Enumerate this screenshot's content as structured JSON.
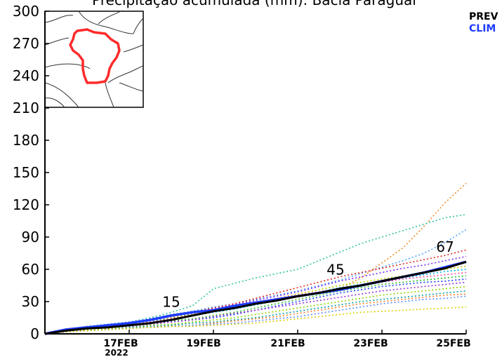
{
  "chart_data": {
    "type": "line",
    "title": "Precipitação acumulada (mm): Bacia Paraguai",
    "xlabel": "",
    "ylabel": "",
    "ylim": [
      0,
      300
    ],
    "yticks": [
      0,
      30,
      60,
      90,
      120,
      150,
      180,
      210,
      240,
      270,
      300
    ],
    "xlim": [
      0,
      10
    ],
    "x_ticks": [
      {
        "x": 2,
        "label": "17FEB",
        "sub": "2022"
      },
      {
        "x": 4,
        "label": "19FEB",
        "sub": ""
      },
      {
        "x": 6,
        "label": "21FEB",
        "sub": ""
      },
      {
        "x": 8,
        "label": "23FEB",
        "sub": ""
      },
      {
        "x": 10,
        "label": "25FEB",
        "sub": ""
      }
    ],
    "legend": {
      "placement": "top-right",
      "items": [
        {
          "label": "PREV",
          "color": "#000000"
        },
        {
          "label": "CLIM",
          "color": "#1f3cff"
        }
      ]
    },
    "annotations": [
      {
        "text": "15",
        "x": 3.0,
        "y": 20
      },
      {
        "text": "45",
        "x": 6.9,
        "y": 50
      },
      {
        "text": "67",
        "x": 9.5,
        "y": 71
      }
    ],
    "x": [
      0,
      0.5,
      1,
      1.5,
      2,
      2.5,
      3,
      3.5,
      4,
      4.5,
      5,
      5.5,
      6,
      6.5,
      7,
      7.5,
      8,
      8.5,
      9,
      9.5,
      10
    ],
    "series": [
      {
        "name": "PREV",
        "color": "#000000",
        "style": "solid",
        "values": [
          0,
          3,
          5,
          6,
          8,
          10,
          13,
          17,
          21,
          24,
          28,
          31,
          35,
          38,
          42,
          45,
          49,
          53,
          57,
          61,
          67
        ]
      },
      {
        "name": "CLIM",
        "color": "#1f3cff",
        "style": "solid",
        "values": [
          0,
          4,
          6,
          8,
          10,
          13,
          17,
          20,
          22,
          26,
          29,
          32,
          35,
          38,
          41,
          45,
          49,
          53,
          57,
          62,
          67
        ]
      }
    ],
    "members": [
      {
        "color": "#f28c28",
        "values": [
          0,
          4,
          6,
          8,
          10,
          14,
          18,
          21,
          23,
          25,
          28,
          31,
          34,
          38,
          42,
          52,
          66,
          80,
          100,
          122,
          140
        ]
      },
      {
        "color": "#2ec4a0",
        "values": [
          0,
          4,
          7,
          9,
          11,
          15,
          20,
          26,
          42,
          47,
          52,
          56,
          60,
          68,
          76,
          84,
          90,
          96,
          102,
          108,
          111
        ]
      },
      {
        "color": "#4aa3ff",
        "values": [
          0,
          4,
          7,
          9,
          11,
          14,
          18,
          21,
          25,
          28,
          32,
          36,
          40,
          45,
          50,
          56,
          62,
          68,
          75,
          85,
          97
        ]
      },
      {
        "color": "#e0201c",
        "values": [
          0,
          4,
          6,
          8,
          10,
          13,
          16,
          20,
          24,
          28,
          33,
          38,
          43,
          48,
          53,
          57,
          61,
          65,
          69,
          73,
          78
        ]
      },
      {
        "color": "#7b2cff",
        "values": [
          0,
          4,
          6,
          8,
          9,
          12,
          15,
          19,
          23,
          27,
          31,
          35,
          39,
          44,
          49,
          53,
          57,
          61,
          64,
          68,
          72
        ]
      },
      {
        "color": "#c0d000",
        "values": [
          0,
          3,
          5,
          7,
          9,
          12,
          15,
          18,
          22,
          25,
          29,
          33,
          37,
          41,
          45,
          48,
          51,
          54,
          57,
          60,
          63
        ]
      },
      {
        "color": "#00b7eb",
        "values": [
          0,
          3,
          5,
          7,
          9,
          12,
          14,
          17,
          20,
          23,
          27,
          31,
          35,
          39,
          43,
          46,
          49,
          52,
          55,
          58,
          60
        ]
      },
      {
        "color": "#ff4fa0",
        "values": [
          0,
          3,
          5,
          6,
          8,
          11,
          14,
          17,
          21,
          25,
          29,
          33,
          36,
          39,
          42,
          45,
          48,
          51,
          53,
          55,
          57
        ]
      },
      {
        "color": "#2bbf2b",
        "values": [
          0,
          3,
          5,
          6,
          8,
          10,
          12,
          14,
          17,
          20,
          24,
          28,
          32,
          36,
          40,
          43,
          46,
          48,
          50,
          52,
          54
        ]
      },
      {
        "color": "#1f3cff",
        "values": [
          0,
          3,
          4,
          6,
          7,
          9,
          11,
          13,
          15,
          18,
          22,
          26,
          30,
          34,
          38,
          41,
          44,
          46,
          48,
          49,
          51
        ]
      },
      {
        "color": "#9b30d0",
        "values": [
          0,
          3,
          4,
          6,
          7,
          9,
          11,
          13,
          16,
          19,
          22,
          25,
          28,
          31,
          34,
          37,
          40,
          42,
          44,
          46,
          48
        ]
      },
      {
        "color": "#8fd400",
        "values": [
          0,
          2,
          4,
          5,
          6,
          8,
          9,
          11,
          13,
          15,
          18,
          21,
          24,
          27,
          30,
          33,
          36,
          38,
          40,
          42,
          44
        ]
      },
      {
        "color": "#00a0a0",
        "values": [
          0,
          2,
          3,
          4,
          6,
          7,
          8,
          10,
          11,
          13,
          15,
          18,
          21,
          24,
          27,
          30,
          32,
          34,
          36,
          38,
          40
        ]
      },
      {
        "color": "#ff7f2a",
        "values": [
          0,
          2,
          3,
          4,
          5,
          6,
          7,
          8,
          10,
          12,
          14,
          16,
          19,
          22,
          25,
          28,
          30,
          32,
          34,
          36,
          37
        ]
      },
      {
        "color": "#5a8cff",
        "values": [
          0,
          2,
          3,
          4,
          5,
          6,
          7,
          8,
          9,
          10,
          12,
          14,
          16,
          19,
          22,
          25,
          28,
          30,
          32,
          33,
          35
        ]
      },
      {
        "color": "#dccc00",
        "values": [
          0,
          2,
          3,
          4,
          5,
          6,
          7,
          7,
          8,
          9,
          10,
          12,
          14,
          16,
          18,
          20,
          21,
          22,
          23,
          24,
          25
        ]
      }
    ]
  }
}
